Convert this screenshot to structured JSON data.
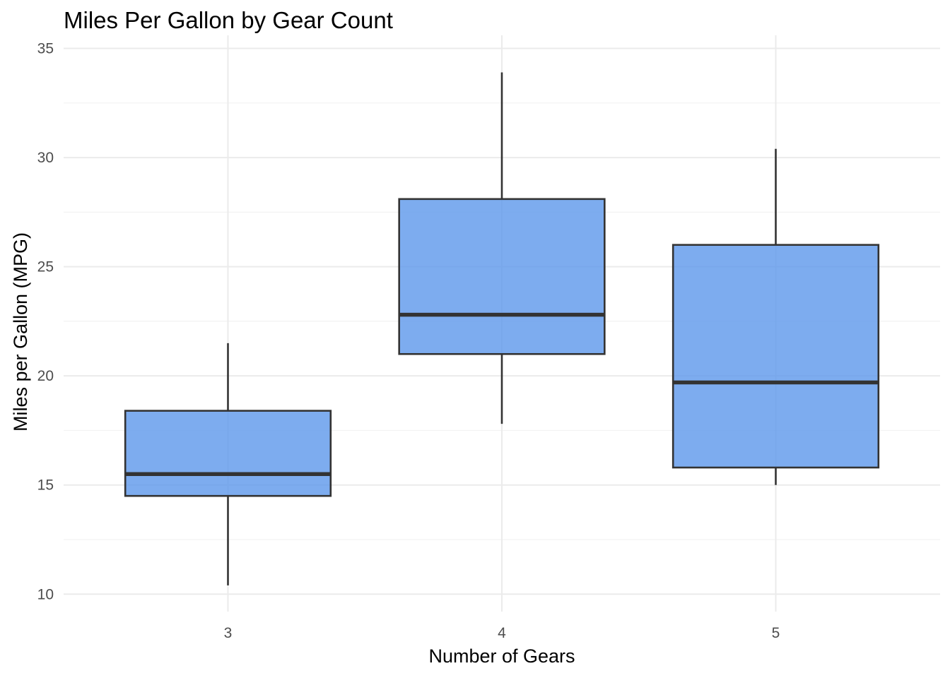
{
  "chart_data": {
    "type": "boxplot",
    "title": "Miles Per Gallon by Gear Count",
    "xlabel": "Number of Gears",
    "ylabel": "Miles per Gallon (MPG)",
    "categories": [
      "3",
      "4",
      "5"
    ],
    "ylim": [
      9.2,
      35.6
    ],
    "y_ticks": [
      10,
      15,
      20,
      25,
      30,
      35
    ],
    "y_tick_labels": [
      "10",
      "15",
      "20",
      "25",
      "30",
      "35"
    ],
    "grid": true,
    "fill_color": "#5C97EB",
    "outline_color": "#333333",
    "boxes": [
      {
        "category": "3",
        "min": 10.4,
        "q1": 14.5,
        "median": 15.5,
        "q3": 18.4,
        "max": 21.5
      },
      {
        "category": "4",
        "min": 17.8,
        "q1": 21.0,
        "median": 22.8,
        "q3": 28.1,
        "max": 33.9
      },
      {
        "category": "5",
        "min": 15.0,
        "q1": 15.8,
        "median": 19.7,
        "q3": 26.0,
        "max": 30.4
      }
    ]
  }
}
